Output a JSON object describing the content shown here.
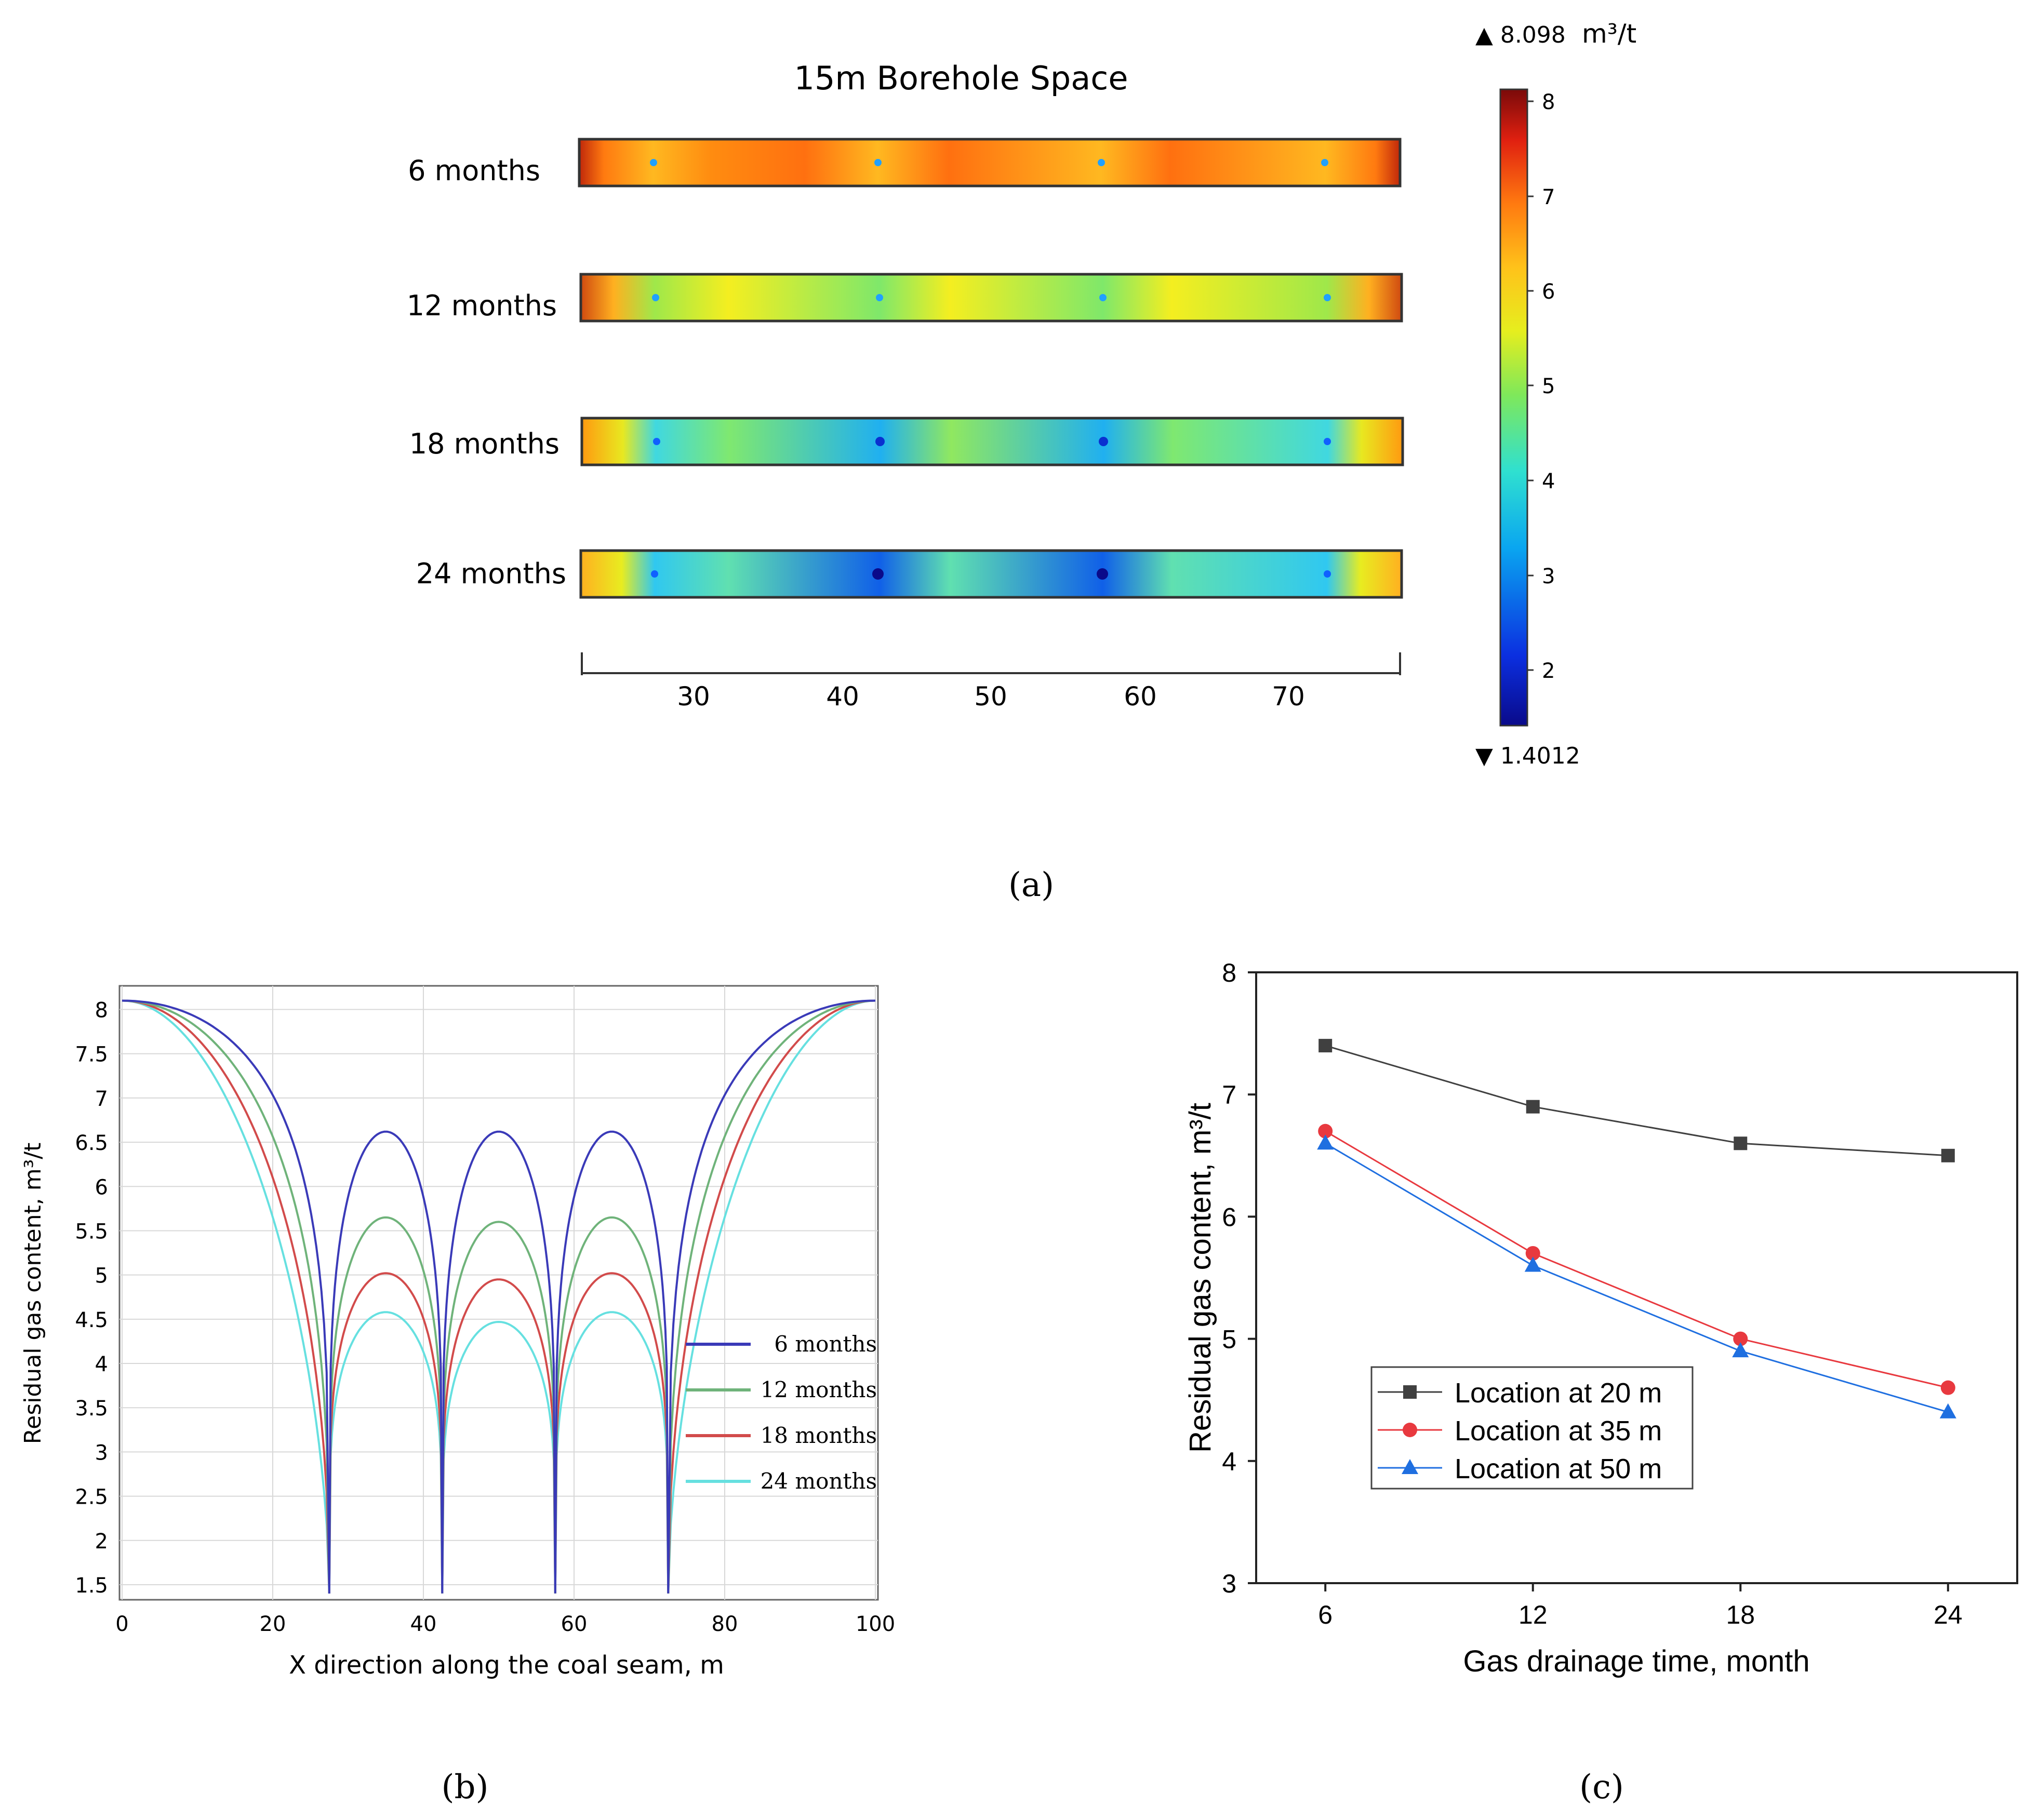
{
  "captions": {
    "a": "(a)",
    "b": "(b)",
    "c": "(c)"
  },
  "panel_a": {
    "title": "15m Borehole Space",
    "rows": [
      "6 months",
      "12 months",
      "18 months",
      "24 months"
    ],
    "axis_ticks": [
      "30",
      "40",
      "50",
      "60",
      "70"
    ],
    "colorbar": {
      "max_label": "▲ 8.098",
      "unit": "m³/t",
      "min_label": "▼ 1.4012",
      "ticks": [
        "8",
        "7",
        "6",
        "5",
        "4",
        "3",
        "2"
      ]
    }
  },
  "colors": {
    "six": "#3a3ab8",
    "twelve": "#6fb37a",
    "eighteen": "#d24b4b",
    "twentyfour": "#66e0e0",
    "loc20": "#404040",
    "loc35": "#e8393f",
    "loc50": "#1f6fe0"
  },
  "chart_data": [
    {
      "type": "line",
      "title": "",
      "xlabel": "X direction along the coal seam, m",
      "ylabel": "Residual gas content, m³/t",
      "xlim": [
        0,
        100
      ],
      "ylim": [
        1.4,
        8.15
      ],
      "xticks": [
        "0",
        "20",
        "40",
        "60",
        "80",
        "100"
      ],
      "yticks": [
        "8",
        "7.5",
        "7",
        "6.5",
        "6",
        "5.5",
        "5",
        "4.5",
        "4",
        "3.5",
        "3",
        "2.5",
        "2",
        "1.5"
      ],
      "boreholes_x": [
        27.5,
        42.5,
        57.5,
        72.5
      ],
      "edge_value": 8.1,
      "legend": [
        "6 months",
        "12 months",
        "18 months",
        "24 months"
      ],
      "series": [
        {
          "name": "6 months",
          "peaks": [
            6.62,
            6.62,
            6.62
          ],
          "color": "#3a3ab8"
        },
        {
          "name": "12 months",
          "peaks": [
            5.65,
            5.6,
            5.65
          ],
          "color": "#6fb37a"
        },
        {
          "name": "18 months",
          "peaks": [
            5.02,
            4.95,
            5.02
          ],
          "color": "#d24b4b"
        },
        {
          "name": "24 months",
          "peaks": [
            4.58,
            4.47,
            4.58
          ],
          "color": "#66e0e0"
        }
      ]
    },
    {
      "type": "line",
      "title": "",
      "xlabel": "Gas drainage time, month",
      "ylabel": "Residual gas content, m³/t",
      "categories": [
        "6",
        "12",
        "18",
        "24"
      ],
      "x": [
        6,
        12,
        18,
        24
      ],
      "xlim": [
        4,
        26
      ],
      "ylim": [
        3,
        8
      ],
      "yticks": [
        "3",
        "4",
        "5",
        "6",
        "7",
        "8"
      ],
      "series": [
        {
          "name": "Location at 20 m",
          "values": [
            7.4,
            6.9,
            6.6,
            6.5
          ],
          "marker": "square",
          "color": "#404040"
        },
        {
          "name": "Location at 35 m",
          "values": [
            6.7,
            5.7,
            5.0,
            4.6
          ],
          "marker": "circle",
          "color": "#e8393f"
        },
        {
          "name": "Location at 50 m",
          "values": [
            6.6,
            5.6,
            4.9,
            4.4
          ],
          "marker": "triangle",
          "color": "#1f6fe0"
        }
      ]
    }
  ]
}
